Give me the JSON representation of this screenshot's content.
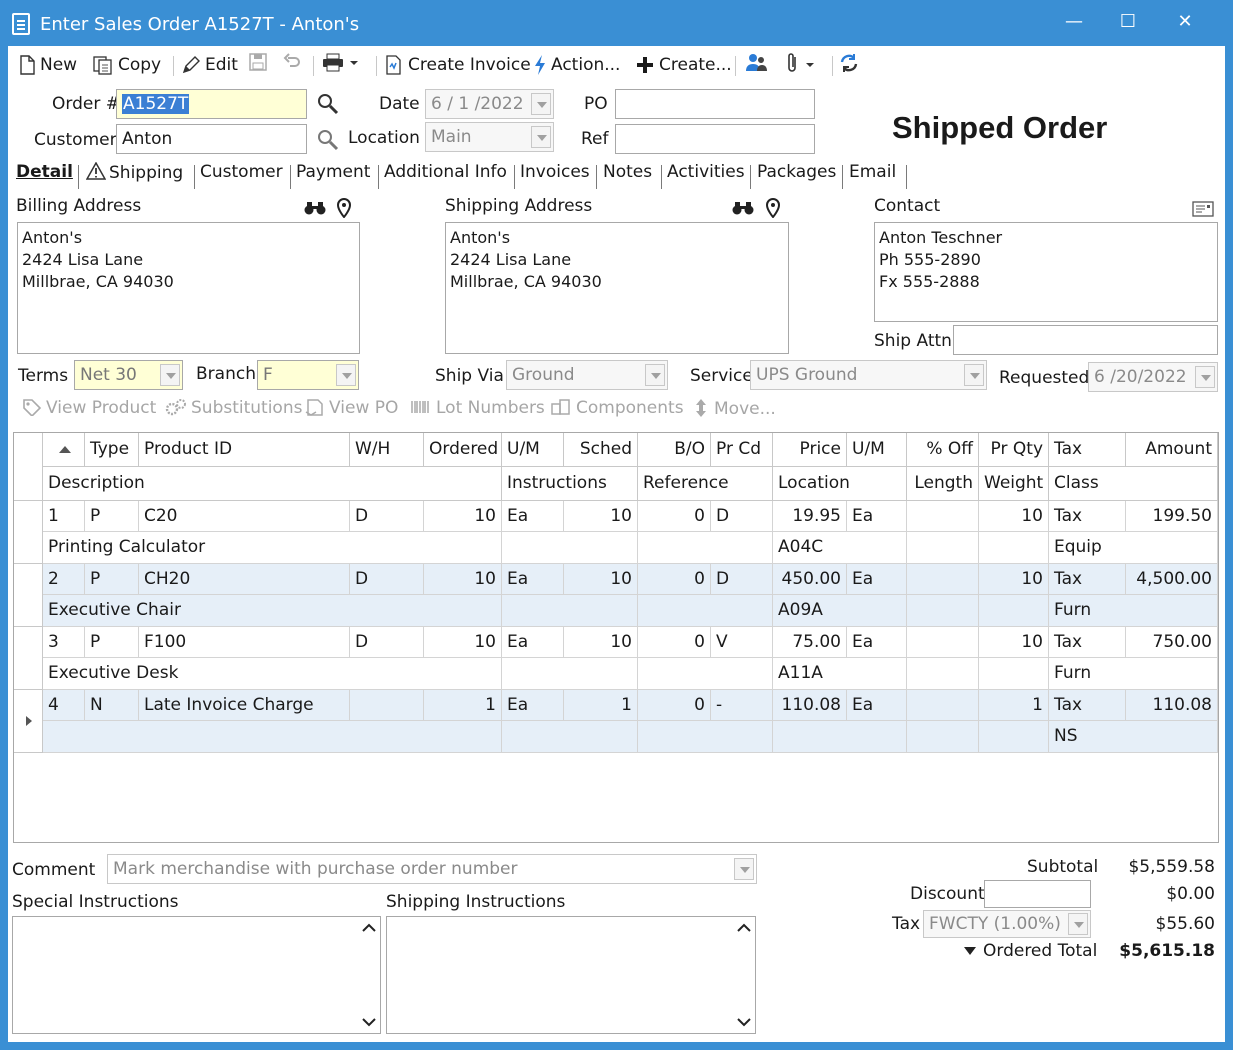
{
  "window": {
    "title": "Enter Sales Order A1527T - Anton's",
    "min": "—",
    "max": "☐",
    "close": "✕"
  },
  "toolbar": {
    "new": "New",
    "copy": "Copy",
    "edit": "Edit",
    "create_invoice": "Create Invoice",
    "action": "Action...",
    "create": "Create..."
  },
  "header": {
    "order_label": "Order #",
    "order_value": "A1527T",
    "customer_label": "Customer",
    "customer_value": "Anton",
    "date_label": "Date",
    "date_value": "6 / 1 /2022",
    "location_label": "Location",
    "location_value": "Main",
    "po_label": "PO",
    "po_value": "",
    "ref_label": "Ref",
    "ref_value": "",
    "status": "Shipped Order"
  },
  "tabs": [
    "Detail",
    "Shipping",
    "Customer",
    "Payment",
    "Additional Info",
    "Invoices",
    "Notes",
    "Activities",
    "Packages",
    "Email"
  ],
  "addresses": {
    "billing_label": "Billing Address",
    "billing_lines": [
      "Anton's",
      "2424 Lisa Lane",
      "Millbrae, CA 94030"
    ],
    "shipping_label": "Shipping Address",
    "shipping_lines": [
      "Anton's",
      "2424 Lisa Lane",
      "Millbrae, CA 94030"
    ],
    "contact_label": "Contact",
    "contact_lines": [
      "Anton Teschner",
      "Ph 555-2890",
      "Fx 555-2888"
    ],
    "ship_attn_label": "Ship Attn",
    "ship_attn_value": ""
  },
  "terms": {
    "terms_label": "Terms",
    "terms_value": "Net 30",
    "branch_label": "Branch",
    "branch_value": "F",
    "shipvia_label": "Ship Via",
    "shipvia_value": "Ground",
    "service_label": "Service",
    "service_value": "UPS Ground",
    "requested_label": "Requested",
    "requested_value": "6 /20/2022"
  },
  "actions": [
    "View Product",
    "Substitutions",
    "View PO",
    "Lot Numbers",
    "Components",
    "Move..."
  ],
  "grid": {
    "header1": [
      "Type",
      "Product ID",
      "W/H",
      "Ordered",
      "U/M",
      "Sched",
      "B/O",
      "Pr Cd",
      "Price",
      "U/M",
      "% Off",
      "Pr Qty",
      "Tax",
      "Amount"
    ],
    "header2": [
      "Description",
      "Instructions",
      "Reference",
      "Location",
      "Length",
      "Weight",
      "Class"
    ],
    "rows": [
      {
        "line": "1",
        "type": "P",
        "product": "C20",
        "wh": "D",
        "ordered": "10",
        "um": "Ea",
        "sched": "10",
        "bo": "0",
        "prcd": "D",
        "price": "19.95",
        "pum": "Ea",
        "off": "",
        "prqty": "10",
        "tax": "Tax",
        "amount": "199.50",
        "desc": "Printing Calculator",
        "location": "A04C",
        "class": "Equip"
      },
      {
        "line": "2",
        "type": "P",
        "product": "CH20",
        "wh": "D",
        "ordered": "10",
        "um": "Ea",
        "sched": "10",
        "bo": "0",
        "prcd": "D",
        "price": "450.00",
        "pum": "Ea",
        "off": "",
        "prqty": "10",
        "tax": "Tax",
        "amount": "4,500.00",
        "desc": "Executive Chair",
        "location": "A09A",
        "class": "Furn"
      },
      {
        "line": "3",
        "type": "P",
        "product": "F100",
        "wh": "D",
        "ordered": "10",
        "um": "Ea",
        "sched": "10",
        "bo": "0",
        "prcd": "V",
        "price": "75.00",
        "pum": "Ea",
        "off": "",
        "prqty": "10",
        "tax": "Tax",
        "amount": "750.00",
        "desc": "Executive Desk",
        "location": "A11A",
        "class": "Furn"
      },
      {
        "line": "4",
        "type": "N",
        "product": "Late Invoice Charge",
        "wh": "",
        "ordered": "1",
        "um": "Ea",
        "sched": "1",
        "bo": "0",
        "prcd": "-",
        "price": "110.08",
        "pum": "Ea",
        "off": "",
        "prqty": "1",
        "tax": "Tax",
        "amount": "110.08",
        "desc": "",
        "location": "",
        "class": "NS"
      }
    ]
  },
  "bottom": {
    "comment_label": "Comment",
    "comment_value": "Mark merchandise with purchase order number",
    "special_label": "Special Instructions",
    "shipping_instr_label": "Shipping Instructions",
    "subtotal_label": "Subtotal",
    "subtotal_value": "$5,559.58",
    "discount_label": "Discount",
    "discount_value": "$0.00",
    "tax_label": "Tax",
    "tax_code": "FWCTY (1.00%)",
    "tax_value": "$55.60",
    "total_label": "Ordered Total",
    "total_value": "$5,615.18"
  }
}
